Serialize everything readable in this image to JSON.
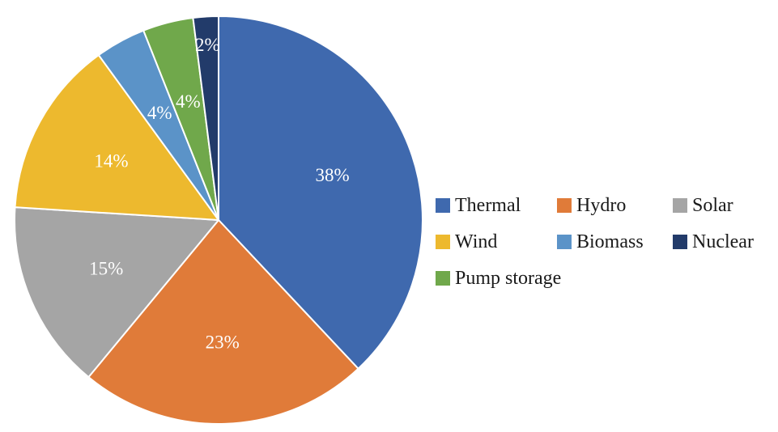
{
  "chart_data": {
    "type": "pie",
    "title": "",
    "series": [
      {
        "labels": [
          "Thermal",
          "Hydro",
          "Solar",
          "Wind",
          "Biomass",
          "Pump storage",
          "Nuclear"
        ],
        "values": [
          38,
          23,
          15,
          14,
          4,
          4,
          2
        ],
        "data_labels": [
          "38%",
          "23%",
          "15%",
          "14%",
          "4%",
          "4%",
          "2%"
        ],
        "colors": [
          "#3F69AE",
          "#E07B39",
          "#A5A5A5",
          "#EDB92E",
          "#5B93C8",
          "#70A84B",
          "#223B6A"
        ]
      }
    ],
    "start_angle_deg": 0,
    "direction": "clockwise",
    "legend": {
      "position": "right",
      "entries": [
        "Thermal",
        "Hydro",
        "Solar",
        "Wind",
        "Biomass",
        "Nuclear",
        "Pump storage"
      ]
    }
  }
}
